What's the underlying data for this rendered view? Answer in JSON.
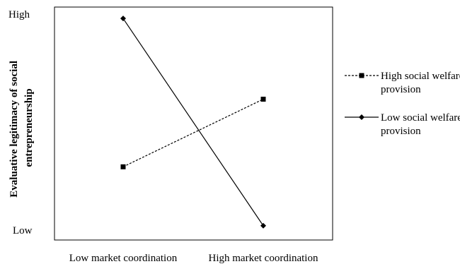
{
  "chart_data": {
    "type": "line",
    "title": "",
    "xlabel": "",
    "ylabel": "Evaluative legitimacy of social entrepreneurship",
    "ylabel_lines": [
      "Evaluative legitimacy of social",
      "entrepreneurship"
    ],
    "categories": [
      "Low market coordination",
      "High market coordination"
    ],
    "y_tick_labels": {
      "high": "High",
      "low": "Low"
    },
    "ylim": [
      0,
      1
    ],
    "grid": false,
    "legend_placement": "right",
    "series": [
      {
        "name": "High social welfare provision",
        "legend_lines": [
          "High social welfare",
          "provision"
        ],
        "values": [
          0.3,
          0.61
        ],
        "line_style": "dashed",
        "marker": "square",
        "color": "#000000"
      },
      {
        "name": "Low social welfare provision",
        "legend_lines": [
          "Low social welfare",
          "provision"
        ],
        "values": [
          0.98,
          0.03
        ],
        "line_style": "solid",
        "marker": "diamond",
        "color": "#000000"
      }
    ]
  }
}
